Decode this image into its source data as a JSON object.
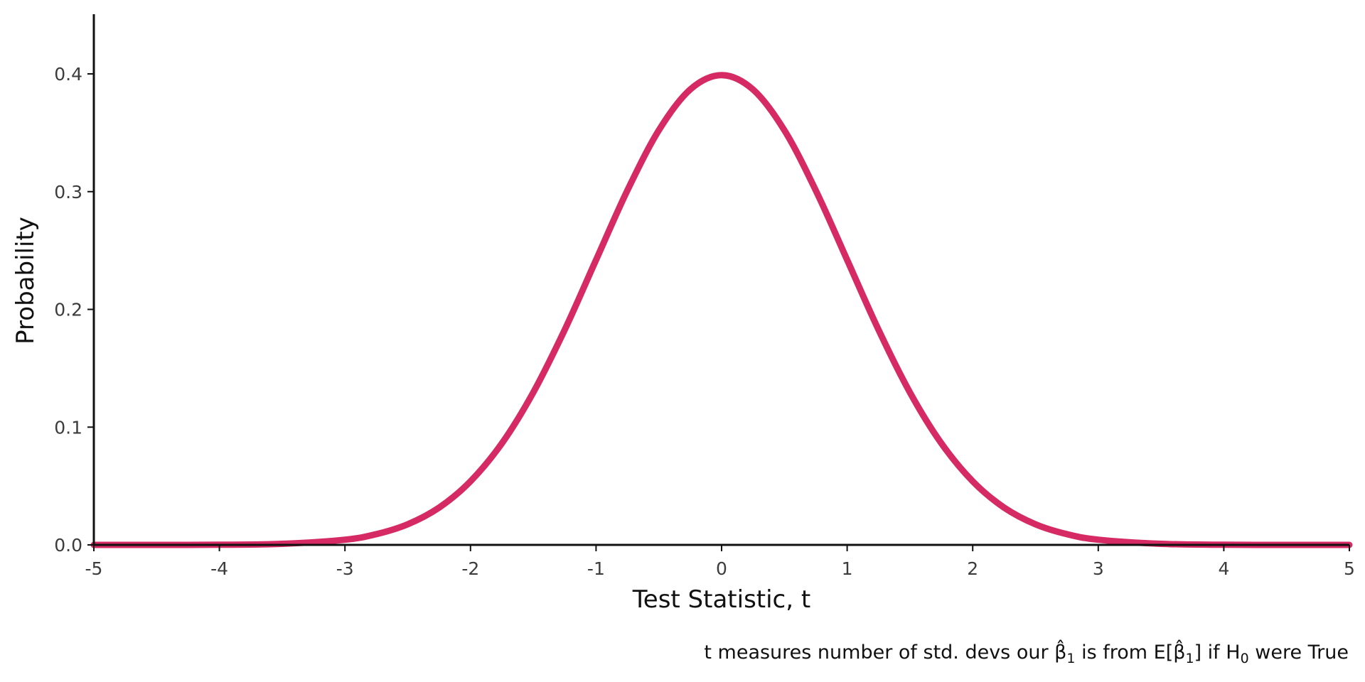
{
  "chart_data": {
    "type": "line",
    "title": "",
    "xlabel": "Test Statistic, t",
    "ylabel": "Probability",
    "caption": {
      "lead": "t measures number of std. devs our ",
      "beta_hat": "β̂",
      "sub1": "1",
      "mid": " is from E[",
      "close": "] if H",
      "sub0": "0",
      "tail": " were True"
    },
    "xlim": [
      -5,
      5
    ],
    "ylim": [
      0,
      0.45
    ],
    "x_ticks": [
      -5,
      -4,
      -3,
      -2,
      -1,
      0,
      1,
      2,
      3,
      4,
      5
    ],
    "x_tick_labels": [
      "-5",
      "-4",
      "-3",
      "-2",
      "-1",
      "0",
      "1",
      "2",
      "3",
      "4",
      "5"
    ],
    "y_ticks": [
      0,
      0.1,
      0.2,
      0.3,
      0.4
    ],
    "y_tick_labels": [
      "0.0",
      "0.1",
      "0.2",
      "0.3",
      "0.4"
    ],
    "grid": false,
    "series": [
      {
        "color": "#d62a65",
        "x": [
          -5,
          -4.5,
          -4,
          -3.5,
          -3,
          -2.75,
          -2.5,
          -2.25,
          -2,
          -1.75,
          -1.5,
          -1.25,
          -1,
          -0.75,
          -0.5,
          -0.25,
          0,
          0.25,
          0.5,
          0.75,
          1,
          1.25,
          1.5,
          1.75,
          2,
          2.25,
          2.5,
          2.75,
          3,
          3.5,
          4,
          4.5,
          5
        ],
        "y": [
          0.0,
          0.0,
          0.0001,
          0.0009,
          0.0044,
          0.0091,
          0.0175,
          0.0317,
          0.054,
          0.0863,
          0.1295,
          0.1826,
          0.242,
          0.3011,
          0.3521,
          0.3867,
          0.3989,
          0.3867,
          0.3521,
          0.3011,
          0.242,
          0.1826,
          0.1295,
          0.0863,
          0.054,
          0.0317,
          0.0175,
          0.0091,
          0.0044,
          0.0009,
          0.0001,
          0.0,
          0.0
        ]
      }
    ]
  }
}
